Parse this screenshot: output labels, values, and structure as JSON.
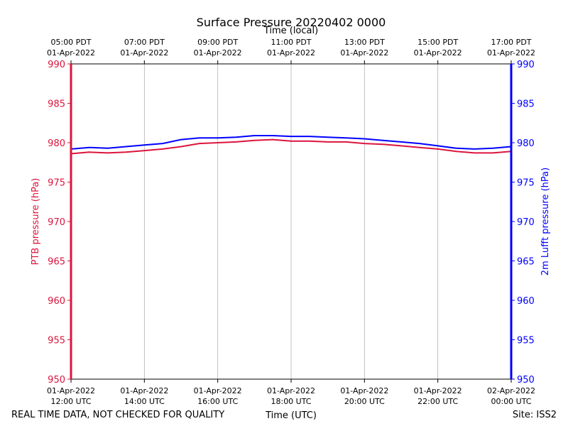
{
  "chart_data": {
    "type": "line",
    "title": "Surface Pressure 20220402 0000",
    "top_axis_label": "Time (local)",
    "xlabel": "Time (UTC)",
    "ylabel_left": "PTB pressure (hPa)",
    "ylabel_right": "2m Lufft pressure (hPa)",
    "ylim": [
      950,
      990
    ],
    "yticks": [
      950,
      955,
      960,
      965,
      970,
      975,
      980,
      985,
      990
    ],
    "grid": "vertical",
    "x_ticks_utc": [
      {
        "date": "01-Apr-2022",
        "time": "12:00 UTC"
      },
      {
        "date": "01-Apr-2022",
        "time": "14:00 UTC"
      },
      {
        "date": "01-Apr-2022",
        "time": "16:00 UTC"
      },
      {
        "date": "01-Apr-2022",
        "time": "18:00 UTC"
      },
      {
        "date": "01-Apr-2022",
        "time": "20:00 UTC"
      },
      {
        "date": "01-Apr-2022",
        "time": "22:00 UTC"
      },
      {
        "date": "02-Apr-2022",
        "time": "00:00 UTC"
      }
    ],
    "x_ticks_local": [
      {
        "time": "05:00 PDT",
        "date": "01-Apr-2022"
      },
      {
        "time": "07:00 PDT",
        "date": "01-Apr-2022"
      },
      {
        "time": "09:00 PDT",
        "date": "01-Apr-2022"
      },
      {
        "time": "11:00 PDT",
        "date": "01-Apr-2022"
      },
      {
        "time": "13:00 PDT",
        "date": "01-Apr-2022"
      },
      {
        "time": "15:00 PDT",
        "date": "01-Apr-2022"
      },
      {
        "time": "17:00 PDT",
        "date": "01-Apr-2022"
      }
    ],
    "x_utc": [
      "2022-04-01 12:00",
      "2022-04-01 12:30",
      "2022-04-01 13:00",
      "2022-04-01 13:30",
      "2022-04-01 14:00",
      "2022-04-01 14:30",
      "2022-04-01 15:00",
      "2022-04-01 15:30",
      "2022-04-01 16:00",
      "2022-04-01 16:30",
      "2022-04-01 17:00",
      "2022-04-01 17:30",
      "2022-04-01 18:00",
      "2022-04-01 18:30",
      "2022-04-01 19:00",
      "2022-04-01 19:30",
      "2022-04-01 20:00",
      "2022-04-01 20:30",
      "2022-04-01 21:00",
      "2022-04-01 21:30",
      "2022-04-01 22:00",
      "2022-04-01 22:30",
      "2022-04-01 23:00",
      "2022-04-01 23:30",
      "2022-04-02 00:00"
    ],
    "series": [
      {
        "axis": "left",
        "color": "#dc143c",
        "values": [
          978.6,
          978.8,
          978.7,
          978.8,
          979.0,
          979.2,
          979.5,
          979.9,
          980.0,
          980.1,
          980.3,
          980.4,
          980.2,
          980.2,
          980.1,
          980.1,
          979.9,
          979.8,
          979.6,
          979.4,
          979.2,
          978.9,
          978.7,
          978.7,
          978.9
        ]
      },
      {
        "axis": "right",
        "color": "#0000ff",
        "values": [
          979.2,
          979.4,
          979.3,
          979.5,
          979.7,
          979.9,
          980.4,
          980.6,
          980.6,
          980.7,
          980.9,
          980.9,
          980.8,
          980.8,
          980.7,
          980.6,
          980.5,
          980.3,
          980.1,
          979.9,
          979.6,
          979.3,
          979.2,
          979.3,
          979.5
        ]
      }
    ],
    "left_axis_color": "#dc143c",
    "right_axis_color": "#0000ff"
  },
  "footer": {
    "left": "REAL TIME DATA, NOT CHECKED FOR QUALITY",
    "right": "Site: ISS2"
  }
}
